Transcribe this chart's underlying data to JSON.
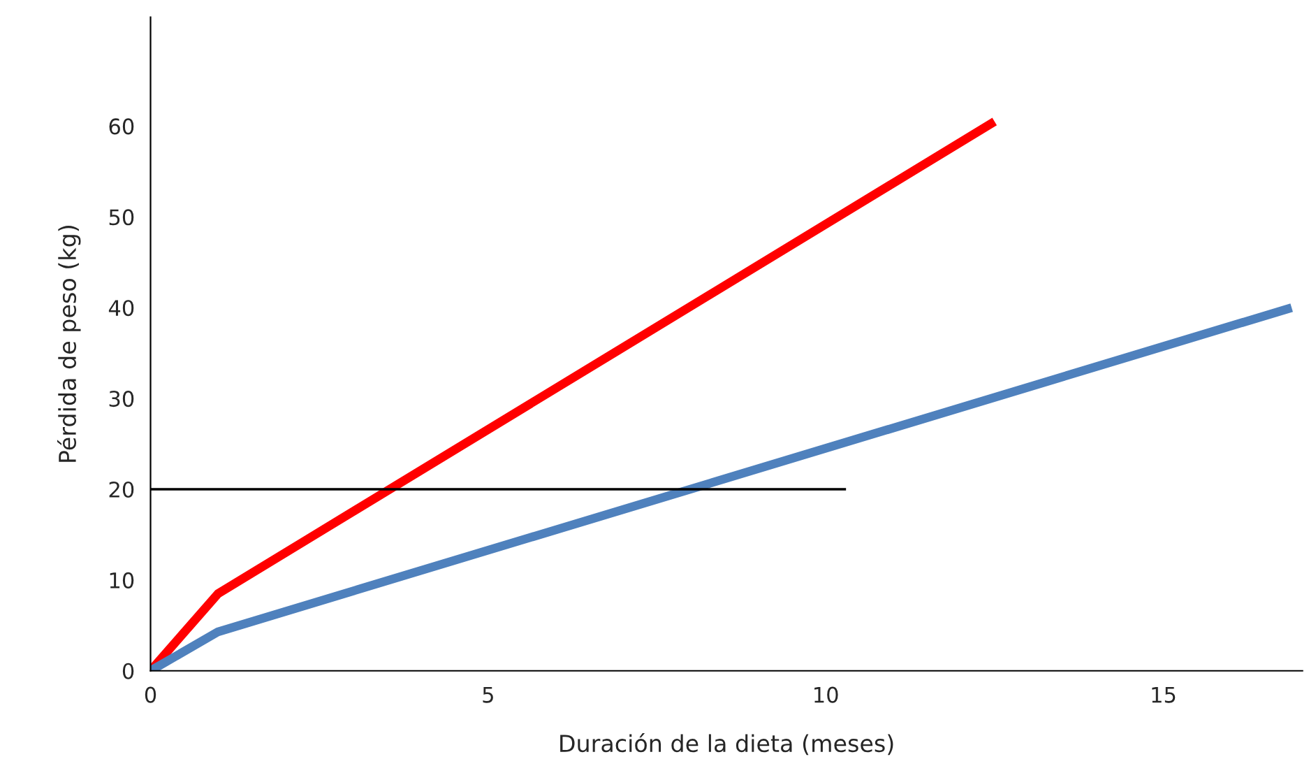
{
  "chart_data": {
    "type": "line",
    "xlabel": "Duración de la dieta (meses)",
    "ylabel": "Pérdida de peso (kg)",
    "xlim": [
      0,
      17.06
    ],
    "ylim": [
      0,
      72
    ],
    "xticks": [
      0,
      5,
      10,
      15
    ],
    "yticks": [
      0,
      10,
      20,
      30,
      40,
      50,
      60
    ],
    "grid": false,
    "legend": false,
    "marker": "none",
    "line_style": "solid",
    "series": [
      {
        "color": "#ff0000",
        "x": [
          0,
          1,
          12.5
        ],
        "values": [
          0,
          8.5,
          60.5
        ]
      },
      {
        "color": "#4f81bd",
        "x": [
          0,
          1,
          16.9
        ],
        "values": [
          0,
          4.3,
          40
        ]
      },
      {
        "color": "#000000",
        "x": [
          0,
          10.3
        ],
        "values": [
          20,
          20
        ]
      }
    ]
  }
}
